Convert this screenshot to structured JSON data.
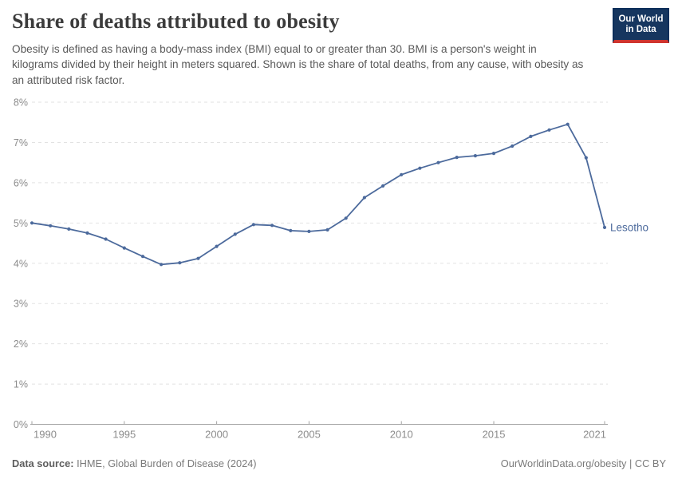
{
  "header": {
    "title": "Share of deaths attributed to obesity",
    "subtitle": "Obesity is defined as having a body-mass index (BMI) equal to or greater than 30. BMI is a person's weight in kilograms divided by their height in meters squared. Shown is the share of total deaths, from any cause, with obesity as an attributed risk factor.",
    "logo": {
      "line1": "Our World",
      "line2": "in Data",
      "bg_color": "#16365f",
      "bar_color": "#cf342e"
    }
  },
  "chart_data": {
    "type": "line",
    "title": "Share of deaths attributed to obesity",
    "xlabel": "",
    "ylabel": "",
    "xlim": [
      1990,
      2021
    ],
    "ylim": [
      0,
      8
    ],
    "xticks": [
      1990,
      1995,
      2000,
      2005,
      2010,
      2015,
      2021
    ],
    "yticks": [
      0,
      1,
      2,
      3,
      4,
      5,
      6,
      7,
      8
    ],
    "ytick_suffix": "%",
    "grid": "horizontal-dashed",
    "legend_position": "end-of-line-label",
    "series": [
      {
        "name": "Lesotho",
        "color": "#4c6a9c",
        "years": [
          1990,
          1991,
          1992,
          1993,
          1994,
          1995,
          1996,
          1997,
          1998,
          1999,
          2000,
          2001,
          2002,
          2003,
          2004,
          2005,
          2006,
          2007,
          2008,
          2009,
          2010,
          2011,
          2012,
          2013,
          2014,
          2015,
          2016,
          2017,
          2018,
          2019,
          2020,
          2021
        ],
        "values": [
          5.0,
          4.93,
          4.85,
          4.75,
          4.6,
          4.38,
          4.17,
          3.97,
          4.01,
          4.12,
          4.42,
          4.72,
          4.96,
          4.94,
          4.81,
          4.79,
          4.83,
          5.12,
          5.63,
          5.92,
          6.2,
          6.36,
          6.5,
          6.63,
          6.67,
          6.73,
          6.91,
          7.15,
          7.31,
          7.45,
          6.62,
          4.89
        ]
      }
    ],
    "colors": {
      "grid": "#e2e2e2",
      "axis": "#a3a3a3",
      "tick_label": "#8c8c8c"
    }
  },
  "footer": {
    "source_label": "Data source:",
    "source_value": "IHME, Global Burden of Disease (2024)",
    "credit": "OurWorldinData.org/obesity | CC BY"
  }
}
